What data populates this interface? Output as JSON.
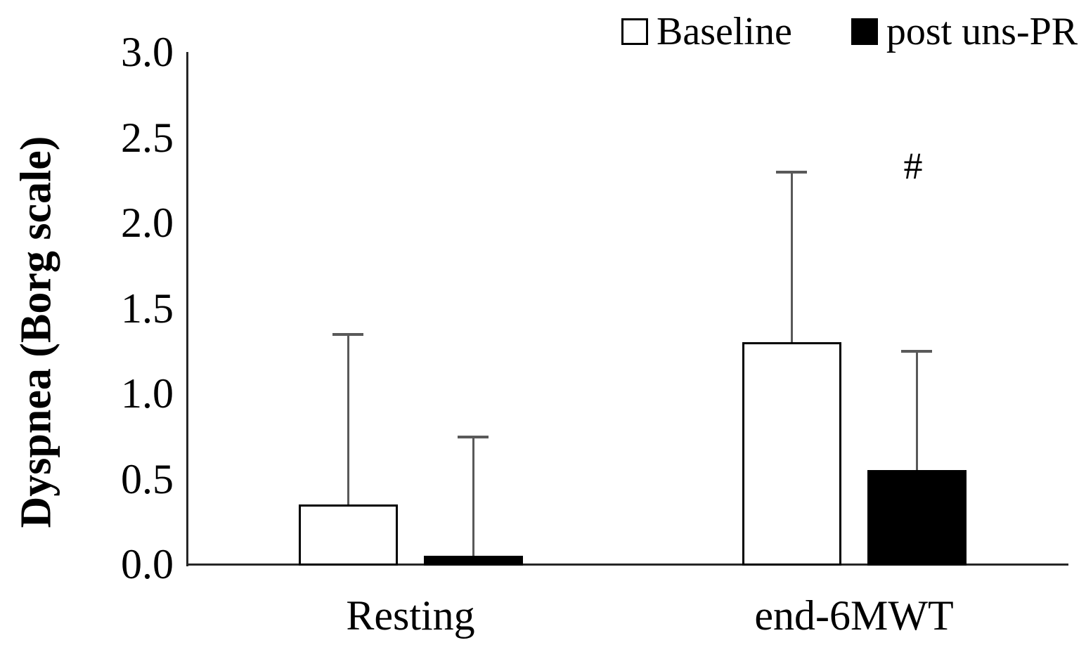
{
  "figure": {
    "background": "#ffffff"
  },
  "chart_data": {
    "type": "bar",
    "title": "",
    "ylabel": "Dyspnea (Borg scale)",
    "xlabel": "",
    "ylim": [
      0,
      3
    ],
    "ytick_step": 0.5,
    "ytick_labels": [
      "0.0",
      "0.5",
      "1.0",
      "1.5",
      "2.0",
      "2.5",
      "3.0"
    ],
    "grid": false,
    "legend_position": "top-right",
    "categories": [
      "Resting",
      "end-6MWT"
    ],
    "series": [
      {
        "name": "Baseline",
        "fill": "#ffffff",
        "border": "#000000",
        "values": [
          0.35,
          1.3
        ],
        "error_up": [
          1.0,
          1.0
        ]
      },
      {
        "name": "post uns-PR",
        "fill": "#000000",
        "border": "#000000",
        "values": [
          0.05,
          0.55
        ],
        "error_up": [
          0.7,
          0.7
        ]
      }
    ],
    "error_bar_color": "#595959",
    "axis_color": "#262626",
    "annotations": [
      {
        "text": "#",
        "category_index": 1,
        "series_index": 1,
        "y": 2.33
      }
    ]
  }
}
